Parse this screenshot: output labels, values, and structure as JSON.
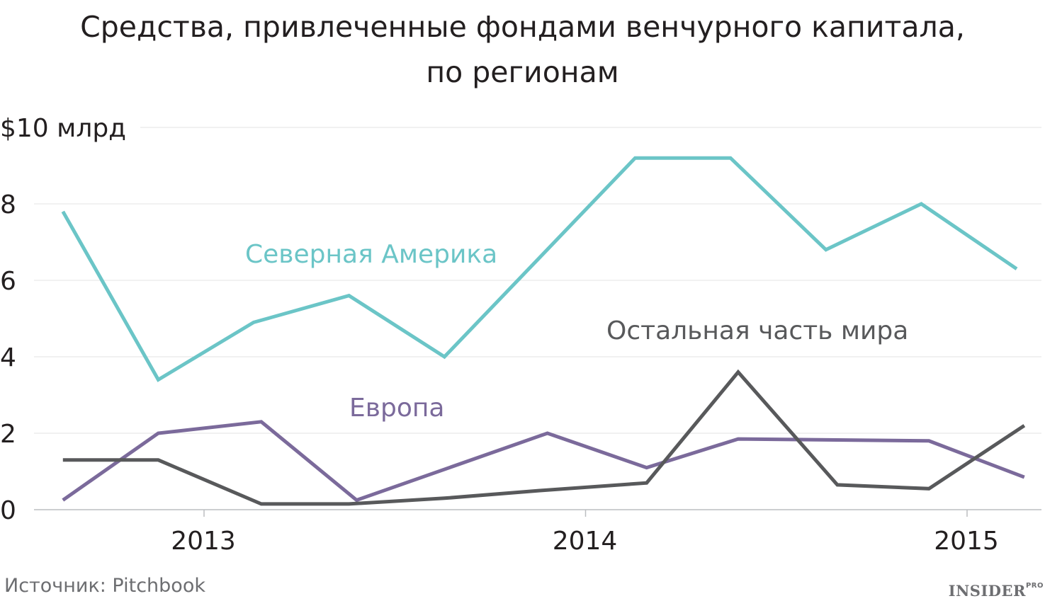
{
  "chart_data": {
    "type": "line",
    "title_line1": "Средства, привлеченные фондами венчурного капитала,",
    "title_line2": "по регионам",
    "y_tick_labels": [
      "0",
      "2",
      "4",
      "6",
      "8",
      "$10 млрд"
    ],
    "y_ticks": [
      0,
      2,
      4,
      6,
      8,
      10
    ],
    "ylim": [
      0,
      10
    ],
    "x_tick_labels": [
      "2013",
      "2014",
      "2015"
    ],
    "x_ticks": [
      2013.0,
      2014.0,
      2015.0
    ],
    "xlim": [
      2012.5,
      2015.2
    ],
    "grid": true,
    "series": [
      {
        "name": "Северная Америка",
        "color": "#6bc5c7",
        "x": [
          2012.63,
          2012.88,
          2013.13,
          2013.38,
          2013.63,
          2013.88,
          2014.13,
          2014.38,
          2014.63,
          2014.88,
          2015.13
        ],
        "values": [
          7.8,
          3.4,
          4.9,
          5.6,
          4.0,
          6.6,
          9.2,
          9.2,
          6.8,
          8.0,
          6.3
        ]
      },
      {
        "name": "Европа",
        "color": "#7b6a9b",
        "x": [
          2012.63,
          2012.88,
          2013.15,
          2013.4,
          2013.9,
          2014.16,
          2014.4,
          2014.9,
          2015.15
        ],
        "values": [
          0.25,
          2.0,
          2.3,
          0.25,
          2.0,
          1.1,
          1.85,
          1.8,
          0.85
        ]
      },
      {
        "name": "Остальная часть мира",
        "color": "#58595b",
        "x": [
          2012.63,
          2012.88,
          2013.15,
          2013.38,
          2013.63,
          2013.88,
          2014.16,
          2014.4,
          2014.66,
          2014.9,
          2015.15
        ],
        "values": [
          1.3,
          1.3,
          0.15,
          0.15,
          0.3,
          0.5,
          0.7,
          3.6,
          0.65,
          0.55,
          2.2
        ]
      }
    ]
  },
  "source": "Источник: Pitchbook",
  "logo": {
    "text": "INSIDER",
    "suffix": "PRO"
  }
}
